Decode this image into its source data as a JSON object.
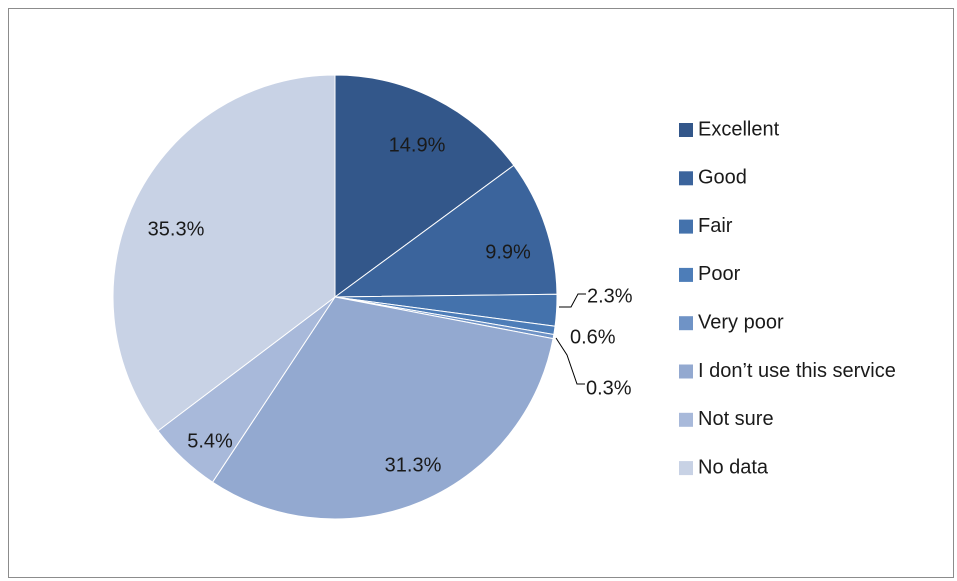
{
  "chart_data": {
    "type": "pie",
    "title": "",
    "legend_position": "right",
    "series": [
      {
        "values": [
          14.9,
          9.9,
          2.3,
          0.6,
          0.3,
          31.3,
          5.4,
          35.3
        ],
        "labels": [
          "14.9%",
          "9.9%",
          "2.3%",
          "0.6%",
          "0.3%",
          "31.3%",
          "5.4%",
          "35.3%"
        ]
      }
    ],
    "categories": [
      "Excellent",
      "Good",
      "Fair",
      "Poor",
      "Very poor",
      "I don’t use this service",
      "Not sure",
      "No data"
    ],
    "colors": [
      "#33578a",
      "#3b649c",
      "#4472ac",
      "#4d7db8",
      "#6f93c6",
      "#93a9d0",
      "#a8b9da",
      "#c8d2e5"
    ]
  }
}
